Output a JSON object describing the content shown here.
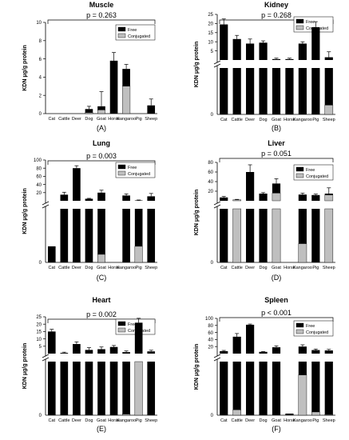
{
  "chart_data": [
    {
      "type": "bar",
      "title": "Muscle",
      "pvalue": "p = 0.263",
      "panel_label": "(A)",
      "ylabel": "KDN μg/g protein",
      "categories": [
        "Cat",
        "Cattle",
        "Deer",
        "Dog",
        "Goat",
        "Horse",
        "Kangaroo",
        "Pig",
        "Sheep"
      ],
      "legend": [
        "Free",
        "Conjugated"
      ],
      "upper_ylim": [
        0,
        10
      ],
      "upper_ticks": [
        "0",
        "2",
        "4",
        "6",
        "8",
        "10"
      ],
      "broken_axis": false,
      "series": [
        {
          "name": "Free",
          "values": [
            0,
            0,
            0,
            0.4,
            0.4,
            5.8,
            1.9,
            0,
            0.9
          ]
        },
        {
          "name": "Conjugated",
          "values": [
            0,
            0,
            0,
            0.1,
            0.4,
            0,
            3.0,
            0,
            0
          ]
        }
      ],
      "error": [
        0,
        0,
        0,
        0.3,
        1.6,
        0.9,
        0.5,
        0,
        0.7
      ]
    },
    {
      "type": "bar",
      "title": "Kidney",
      "pvalue": "p = 0.268",
      "panel_label": "(B)",
      "ylabel": "KDN μg/g protein",
      "categories": [
        "Cat",
        "Cattle",
        "Deer",
        "Dog",
        "Goat",
        "Horse",
        "Kangaroo",
        "Pig",
        "Sheep"
      ],
      "legend": [
        "Free",
        "Conjugated"
      ],
      "upper_ylim": [
        0,
        25
      ],
      "upper_ticks": [
        "5",
        "10",
        "15",
        "20",
        "25"
      ],
      "broken_axis": true,
      "lower_conjugated": [
        0,
        0,
        0,
        0,
        0,
        0,
        0,
        0,
        0.2
      ],
      "series": [
        {
          "name": "Free",
          "values": [
            19.5,
            11.5,
            9.0,
            9.5,
            0.5,
            0.5,
            9.0,
            18.0,
            1.5
          ]
        },
        {
          "name": "Conjugated",
          "values": [
            0,
            0,
            0,
            0,
            0,
            0,
            0,
            0,
            0
          ]
        }
      ],
      "error": [
        3.0,
        2.0,
        2.5,
        1.0,
        0.5,
        0.5,
        1.0,
        3.0,
        3.0
      ]
    },
    {
      "type": "bar",
      "title": "Lung",
      "pvalue": "p = 0.003",
      "panel_label": "(C)",
      "ylabel": "KDN μg/g protein",
      "categories": [
        "Cat",
        "Cattle",
        "Deer",
        "Dog",
        "Goat",
        "Horse",
        "Kangaroo",
        "Pig",
        "Sheep"
      ],
      "legend": [
        "Free",
        "Conjugated"
      ],
      "upper_ylim": [
        0,
        100
      ],
      "upper_ticks": [
        "20",
        "40",
        "60",
        "80",
        "100"
      ],
      "broken_axis": true,
      "lower_conjugated": [
        0,
        0,
        0,
        0,
        0.15,
        0,
        0,
        0.3,
        0
      ],
      "lower_free_partial": [
        0.3,
        1,
        1,
        1,
        1,
        0,
        1,
        1,
        1
      ],
      "series": [
        {
          "name": "Free",
          "values": [
            0,
            15,
            80,
            5,
            20,
            0,
            13,
            1,
            11
          ]
        },
        {
          "name": "Conjugated",
          "values": [
            0,
            0,
            0,
            0,
            0,
            0,
            0,
            0,
            0
          ]
        }
      ],
      "error": [
        0,
        6,
        6,
        1,
        6,
        0,
        4,
        1,
        7
      ]
    },
    {
      "type": "bar",
      "title": "Liver",
      "pvalue": "p = 0.051",
      "panel_label": "(D)",
      "ylabel": "KDN μg/g protein",
      "categories": [
        "Cat",
        "Cattle",
        "Deer",
        "Dog",
        "Goat",
        "Horse",
        "Kangaroo",
        "Pig",
        "Sheep"
      ],
      "legend": [
        "Free",
        "Conjugated"
      ],
      "upper_ylim": [
        0,
        80
      ],
      "upper_ticks": [
        "20",
        "40",
        "60",
        "80"
      ],
      "broken_axis": true,
      "lower_conjugated": [
        0,
        1,
        0,
        0,
        1,
        0,
        0.35,
        0,
        1
      ],
      "lower_free_partial": [
        1,
        1,
        1,
        1,
        1,
        0,
        1,
        1,
        1
      ],
      "series": [
        {
          "name": "Free",
          "values": [
            7,
            0,
            60,
            15,
            20,
            0,
            13,
            12,
            3
          ]
        },
        {
          "name": "Conjugated",
          "values": [
            0,
            2,
            0,
            0,
            16,
            0,
            0,
            0,
            12
          ]
        }
      ],
      "error": [
        2,
        1,
        15,
        2,
        10,
        0,
        3,
        2,
        12
      ]
    },
    {
      "type": "bar",
      "title": "Heart",
      "pvalue": "p = 0.002",
      "panel_label": "(E)",
      "ylabel": "KDN μg/g protein",
      "categories": [
        "Cat",
        "Cattle",
        "Deer",
        "Dog",
        "Goat",
        "Horse",
        "Kangaroo",
        "Pig",
        "Sheep"
      ],
      "legend": [
        "Free",
        "Conjugated"
      ],
      "upper_ylim": [
        0,
        25
      ],
      "upper_ticks": [
        "5",
        "10",
        "15",
        "20",
        "25"
      ],
      "broken_axis": true,
      "lower_conjugated": [
        0,
        0,
        0,
        0,
        0,
        0,
        0.02,
        1,
        0
      ],
      "series": [
        {
          "name": "Free",
          "values": [
            15,
            0.5,
            6.5,
            2.5,
            3.0,
            4.5,
            1.0,
            21,
            1.5
          ]
        },
        {
          "name": "Conjugated",
          "values": [
            0,
            0,
            0,
            0,
            0,
            0,
            0,
            0,
            0
          ]
        }
      ],
      "error": [
        1.5,
        0.5,
        1.5,
        1.5,
        1.5,
        1.0,
        0.8,
        3.0,
        0.8
      ]
    },
    {
      "type": "bar",
      "title": "Spleen",
      "pvalue": "p < 0.001",
      "panel_label": "(F)",
      "ylabel": "KDN μg/g protein",
      "categories": [
        "Cat",
        "Cattle",
        "Deer",
        "Dog",
        "Goat",
        "Horse",
        "Kangaroo",
        "Pig",
        "Sheep"
      ],
      "legend": [
        "Free",
        "Conjugated"
      ],
      "upper_ylim": [
        0,
        100
      ],
      "upper_ticks": [
        "20",
        "40",
        "60",
        "80",
        "100"
      ],
      "broken_axis": true,
      "lower_conjugated": [
        0,
        0.1,
        0,
        0,
        0,
        0,
        0.75,
        0.06,
        0.01
      ],
      "lower_free_partial": [
        1,
        1,
        1,
        1,
        1,
        0.03,
        1,
        1,
        1
      ],
      "series": [
        {
          "name": "Free",
          "values": [
            7,
            48,
            82,
            5,
            18,
            0,
            20,
            10,
            9
          ]
        },
        {
          "name": "Conjugated",
          "values": [
            0,
            0,
            0,
            0,
            0,
            0,
            0,
            0,
            0
          ]
        }
      ],
      "error": [
        2,
        9,
        2,
        1,
        4,
        0,
        5,
        3,
        3
      ]
    }
  ]
}
